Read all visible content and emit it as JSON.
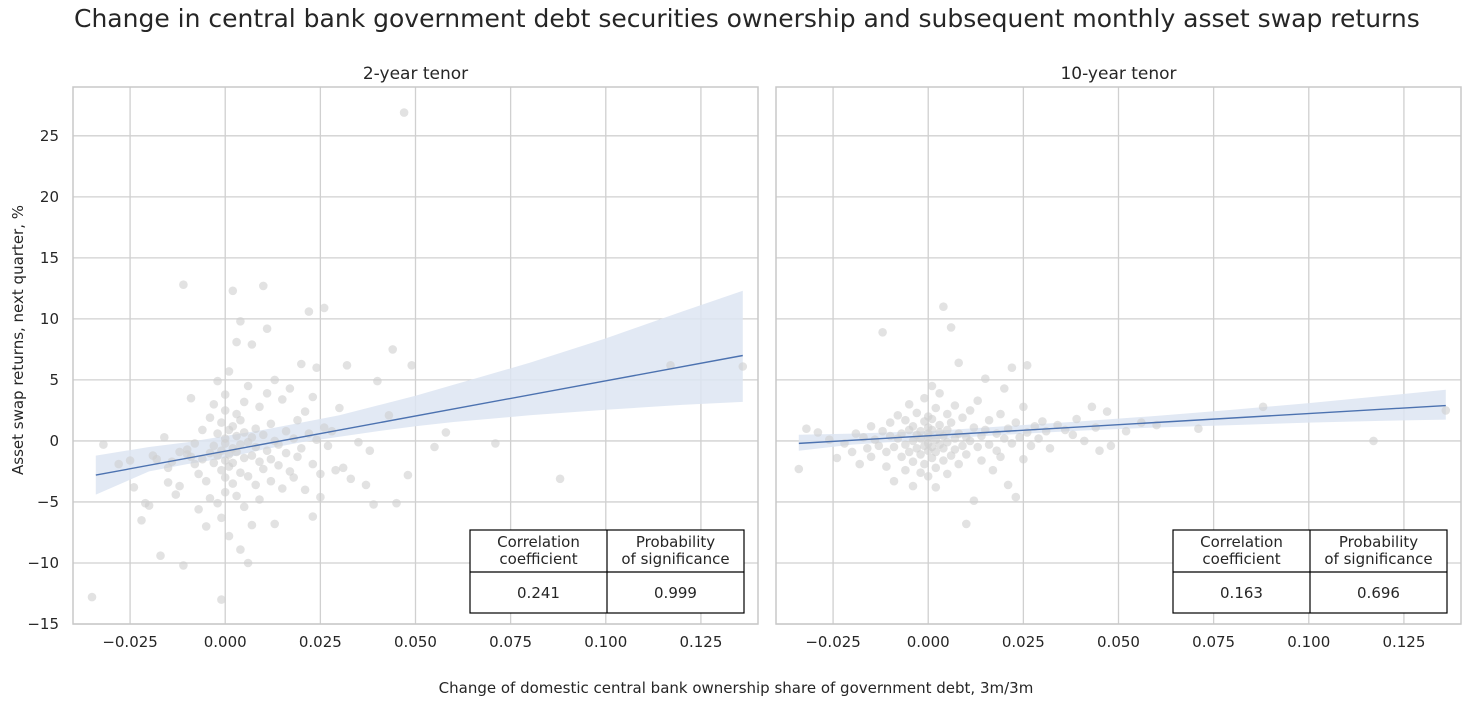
{
  "title": "Change in central bank government debt securities ownership and subsequent monthly asset swap returns",
  "xlabel": "Change of domestic central bank ownership share of government debt, 3m/3m",
  "ylabel": "Asset swap returns, next quarter, %",
  "colors": {
    "point": "#cfcfcf",
    "line": "#4c72b0",
    "band": "#dde5f2",
    "grid": "#d0d0d0",
    "frame": "#c8c8c8"
  },
  "chart_data": [
    {
      "type": "scatter",
      "title": "2-year tenor",
      "xlim": [
        -0.04,
        0.14
      ],
      "ylim": [
        -15,
        29
      ],
      "xticks": [
        -0.025,
        0.0,
        0.025,
        0.05,
        0.075,
        0.1,
        0.125
      ],
      "xtick_labels": [
        "−0.025",
        "0.000",
        "0.025",
        "0.050",
        "0.075",
        "0.100",
        "0.125"
      ],
      "yticks": [
        -15,
        -10,
        -5,
        0,
        5,
        10,
        15,
        20,
        25
      ],
      "ytick_labels": [
        "−15",
        "−10",
        "−5",
        "0",
        "5",
        "10",
        "15",
        "20",
        "25"
      ],
      "regression": {
        "x": [
          -0.034,
          0.136
        ],
        "y": [
          -2.8,
          7.0
        ]
      },
      "confidence_band": {
        "x": [
          -0.034,
          -0.02,
          -0.01,
          0.0,
          0.01,
          0.02,
          0.03,
          0.04,
          0.05,
          0.06,
          0.08,
          0.1,
          0.12,
          0.136
        ],
        "lower": [
          -4.4,
          -2.5,
          -1.9,
          -1.4,
          -0.7,
          -0.1,
          0.35,
          0.8,
          1.2,
          1.55,
          2.1,
          2.55,
          2.95,
          3.2
        ],
        "upper": [
          -1.2,
          -0.5,
          -0.1,
          0.4,
          0.9,
          1.5,
          2.1,
          2.9,
          3.7,
          4.6,
          6.4,
          8.4,
          10.6,
          12.3
        ]
      },
      "points": [
        [
          -0.035,
          -12.8
        ],
        [
          -0.032,
          -0.3
        ],
        [
          -0.028,
          -1.9
        ],
        [
          -0.025,
          -1.6
        ],
        [
          -0.024,
          -3.8
        ],
        [
          -0.022,
          -6.5
        ],
        [
          -0.021,
          -5.1
        ],
        [
          -0.02,
          -5.3
        ],
        [
          -0.019,
          -1.2
        ],
        [
          -0.018,
          -1.5
        ],
        [
          -0.017,
          -9.4
        ],
        [
          -0.016,
          0.3
        ],
        [
          -0.015,
          -3.4
        ],
        [
          -0.015,
          -2.2
        ],
        [
          -0.014,
          -1.7
        ],
        [
          -0.013,
          -4.4
        ],
        [
          -0.012,
          -3.7
        ],
        [
          -0.012,
          -0.9
        ],
        [
          -0.011,
          12.8
        ],
        [
          -0.011,
          -10.2
        ],
        [
          -0.01,
          -1.1
        ],
        [
          -0.01,
          -0.7
        ],
        [
          -0.009,
          -1.3
        ],
        [
          -0.009,
          3.5
        ],
        [
          -0.008,
          -0.2
        ],
        [
          -0.008,
          -1.9
        ],
        [
          -0.007,
          -5.6
        ],
        [
          -0.007,
          -2.7
        ],
        [
          -0.006,
          -1.5
        ],
        [
          -0.006,
          0.9
        ],
        [
          -0.005,
          -7.0
        ],
        [
          -0.005,
          -3.3
        ],
        [
          -0.004,
          -1.0
        ],
        [
          -0.004,
          1.9
        ],
        [
          -0.004,
          -4.7
        ],
        [
          -0.003,
          3.0
        ],
        [
          -0.003,
          -1.8
        ],
        [
          -0.003,
          -0.4
        ],
        [
          -0.002,
          -5.1
        ],
        [
          -0.002,
          -1.2
        ],
        [
          -0.002,
          0.6
        ],
        [
          -0.002,
          4.9
        ],
        [
          -0.001,
          -13.0
        ],
        [
          -0.001,
          -2.4
        ],
        [
          -0.001,
          -0.8
        ],
        [
          -0.001,
          1.5
        ],
        [
          -0.001,
          -6.3
        ],
        [
          0.0,
          -3.0
        ],
        [
          0.0,
          0.2
        ],
        [
          0.0,
          2.5
        ],
        [
          0.0,
          -1.6
        ],
        [
          0.0,
          -4.2
        ],
        [
          0.0,
          -0.2
        ],
        [
          0.0,
          3.8
        ],
        [
          0.001,
          -2.1
        ],
        [
          0.001,
          -7.8
        ],
        [
          0.001,
          0.9
        ],
        [
          0.001,
          -1.1
        ],
        [
          0.001,
          5.7
        ],
        [
          0.002,
          -0.6
        ],
        [
          0.002,
          12.3
        ],
        [
          0.002,
          -3.5
        ],
        [
          0.002,
          1.2
        ],
        [
          0.002,
          -1.8
        ],
        [
          0.003,
          -4.5
        ],
        [
          0.003,
          0.4
        ],
        [
          0.003,
          2.2
        ],
        [
          0.003,
          -0.9
        ],
        [
          0.003,
          8.1
        ],
        [
          0.004,
          -2.6
        ],
        [
          0.004,
          -8.9
        ],
        [
          0.004,
          -0.3
        ],
        [
          0.004,
          1.7
        ],
        [
          0.004,
          9.8
        ],
        [
          0.005,
          -5.4
        ],
        [
          0.005,
          -1.4
        ],
        [
          0.005,
          0.7
        ],
        [
          0.005,
          3.2
        ],
        [
          0.006,
          -0.1
        ],
        [
          0.006,
          -2.9
        ],
        [
          0.006,
          -10.0
        ],
        [
          0.006,
          4.5
        ],
        [
          0.007,
          -1.2
        ],
        [
          0.007,
          0.3
        ],
        [
          0.007,
          7.9
        ],
        [
          0.007,
          -6.9
        ],
        [
          0.008,
          -3.6
        ],
        [
          0.008,
          1.0
        ],
        [
          0.008,
          -0.5
        ],
        [
          0.009,
          2.8
        ],
        [
          0.009,
          -4.8
        ],
        [
          0.009,
          -1.7
        ],
        [
          0.01,
          12.7
        ],
        [
          0.01,
          0.5
        ],
        [
          0.01,
          -2.3
        ],
        [
          0.011,
          3.9
        ],
        [
          0.011,
          -0.8
        ],
        [
          0.011,
          9.2
        ],
        [
          0.012,
          -1.5
        ],
        [
          0.012,
          -3.3
        ],
        [
          0.012,
          1.4
        ],
        [
          0.013,
          -6.8
        ],
        [
          0.013,
          0.0
        ],
        [
          0.013,
          5.0
        ],
        [
          0.014,
          -2.0
        ],
        [
          0.014,
          -0.3
        ],
        [
          0.015,
          3.4
        ],
        [
          0.015,
          -3.9
        ],
        [
          0.016,
          0.8
        ],
        [
          0.016,
          -1.0
        ],
        [
          0.017,
          4.3
        ],
        [
          0.017,
          -2.5
        ],
        [
          0.018,
          0.2
        ],
        [
          0.018,
          -3.0
        ],
        [
          0.019,
          1.7
        ],
        [
          0.019,
          -1.3
        ],
        [
          0.02,
          6.3
        ],
        [
          0.02,
          -0.6
        ],
        [
          0.021,
          2.4
        ],
        [
          0.021,
          -4.0
        ],
        [
          0.022,
          10.6
        ],
        [
          0.022,
          0.6
        ],
        [
          0.023,
          -1.9
        ],
        [
          0.023,
          3.6
        ],
        [
          0.023,
          -6.2
        ],
        [
          0.024,
          0.1
        ],
        [
          0.024,
          6.0
        ],
        [
          0.025,
          -2.7
        ],
        [
          0.025,
          -4.6
        ],
        [
          0.026,
          1.1
        ],
        [
          0.026,
          10.9
        ],
        [
          0.027,
          -0.4
        ],
        [
          0.028,
          0.8
        ],
        [
          0.029,
          -2.4
        ],
        [
          0.03,
          2.7
        ],
        [
          0.031,
          -2.2
        ],
        [
          0.032,
          6.2
        ],
        [
          0.033,
          -3.1
        ],
        [
          0.035,
          -0.1
        ],
        [
          0.037,
          -3.6
        ],
        [
          0.038,
          -0.8
        ],
        [
          0.039,
          -5.2
        ],
        [
          0.04,
          4.9
        ],
        [
          0.043,
          2.1
        ],
        [
          0.044,
          7.5
        ],
        [
          0.045,
          -5.1
        ],
        [
          0.047,
          26.9
        ],
        [
          0.048,
          -2.8
        ],
        [
          0.049,
          6.2
        ],
        [
          0.055,
          -0.5
        ],
        [
          0.058,
          0.7
        ],
        [
          0.071,
          -0.2
        ],
        [
          0.088,
          -3.1
        ],
        [
          0.117,
          6.2
        ],
        [
          0.136,
          6.1
        ]
      ],
      "table": {
        "headers": [
          [
            "Correlation",
            "coefficient"
          ],
          [
            "Probability",
            "of significance"
          ]
        ],
        "values": [
          "0.241",
          "0.999"
        ]
      }
    },
    {
      "type": "scatter",
      "title": "10-year tenor",
      "xlim": [
        -0.04,
        0.14
      ],
      "ylim": [
        -15,
        29
      ],
      "xticks": [
        -0.025,
        0.0,
        0.025,
        0.05,
        0.075,
        0.1,
        0.125
      ],
      "xtick_labels": [
        "−0.025",
        "0.000",
        "0.025",
        "0.050",
        "0.075",
        "0.100",
        "0.125"
      ],
      "regression": {
        "x": [
          -0.034,
          0.136
        ],
        "y": [
          -0.2,
          2.9
        ]
      },
      "confidence_band": {
        "x": [
          -0.034,
          -0.02,
          0.0,
          0.02,
          0.04,
          0.06,
          0.08,
          0.1,
          0.12,
          0.136
        ],
        "lower": [
          -0.8,
          -0.3,
          0.1,
          0.5,
          0.85,
          1.1,
          1.3,
          1.5,
          1.65,
          1.75
        ],
        "upper": [
          0.5,
          0.6,
          0.8,
          1.2,
          1.6,
          2.05,
          2.55,
          3.1,
          3.7,
          4.2
        ]
      },
      "points": [
        [
          -0.034,
          -2.3
        ],
        [
          -0.032,
          1.0
        ],
        [
          -0.029,
          0.7
        ],
        [
          -0.026,
          0.1
        ],
        [
          -0.024,
          -1.4
        ],
        [
          -0.022,
          -0.2
        ],
        [
          -0.02,
          -0.9
        ],
        [
          -0.019,
          0.6
        ],
        [
          -0.018,
          -1.9
        ],
        [
          -0.017,
          0.3
        ],
        [
          -0.016,
          -0.6
        ],
        [
          -0.015,
          1.2
        ],
        [
          -0.015,
          -1.3
        ],
        [
          -0.014,
          0.1
        ],
        [
          -0.013,
          -0.4
        ],
        [
          -0.012,
          8.9
        ],
        [
          -0.012,
          0.8
        ],
        [
          -0.011,
          -2.1
        ],
        [
          -0.011,
          -0.9
        ],
        [
          -0.01,
          0.4
        ],
        [
          -0.01,
          1.5
        ],
        [
          -0.009,
          -0.5
        ],
        [
          -0.009,
          -3.3
        ],
        [
          -0.008,
          0.2
        ],
        [
          -0.008,
          2.1
        ],
        [
          -0.007,
          -1.3
        ],
        [
          -0.007,
          0.6
        ],
        [
          -0.006,
          -0.3
        ],
        [
          -0.006,
          1.7
        ],
        [
          -0.006,
          -2.4
        ],
        [
          -0.005,
          0.9
        ],
        [
          -0.005,
          -0.9
        ],
        [
          -0.005,
          3.0
        ],
        [
          -0.004,
          0.0
        ],
        [
          -0.004,
          -1.7
        ],
        [
          -0.004,
          1.2
        ],
        [
          -0.004,
          -3.7
        ],
        [
          -0.003,
          0.5
        ],
        [
          -0.003,
          -0.6
        ],
        [
          -0.003,
          2.3
        ],
        [
          -0.002,
          -1.1
        ],
        [
          -0.002,
          0.8
        ],
        [
          -0.002,
          -2.6
        ],
        [
          -0.002,
          0.2
        ],
        [
          -0.001,
          1.6
        ],
        [
          -0.001,
          -0.4
        ],
        [
          -0.001,
          -1.9
        ],
        [
          -0.001,
          3.5
        ],
        [
          0.0,
          0.3
        ],
        [
          0.0,
          -0.8
        ],
        [
          0.0,
          1.1
        ],
        [
          0.0,
          -2.9
        ],
        [
          0.0,
          0.6
        ],
        [
          0.0,
          2.0
        ],
        [
          0.0,
          -0.2
        ],
        [
          0.001,
          -1.4
        ],
        [
          0.001,
          0.9
        ],
        [
          0.001,
          4.5
        ],
        [
          0.001,
          -0.5
        ],
        [
          0.001,
          1.8
        ],
        [
          0.002,
          -2.2
        ],
        [
          0.002,
          0.1
        ],
        [
          0.002,
          2.7
        ],
        [
          0.002,
          -0.9
        ],
        [
          0.002,
          -3.8
        ],
        [
          0.003,
          1.3
        ],
        [
          0.003,
          -0.3
        ],
        [
          0.003,
          0.7
        ],
        [
          0.003,
          3.9
        ],
        [
          0.004,
          -1.6
        ],
        [
          0.004,
          0.4
        ],
        [
          0.004,
          -0.6
        ],
        [
          0.004,
          11.0
        ],
        [
          0.005,
          2.2
        ],
        [
          0.005,
          -2.7
        ],
        [
          0.005,
          0.9
        ],
        [
          0.005,
          -0.1
        ],
        [
          0.006,
          1.5
        ],
        [
          0.006,
          -1.2
        ],
        [
          0.006,
          9.3
        ],
        [
          0.007,
          0.2
        ],
        [
          0.007,
          -0.7
        ],
        [
          0.007,
          2.9
        ],
        [
          0.008,
          -1.9
        ],
        [
          0.008,
          0.6
        ],
        [
          0.008,
          6.4
        ],
        [
          0.009,
          -0.4
        ],
        [
          0.009,
          1.9
        ],
        [
          0.01,
          -6.8
        ],
        [
          0.01,
          0.3
        ],
        [
          0.01,
          -1.1
        ],
        [
          0.011,
          2.5
        ],
        [
          0.011,
          0.0
        ],
        [
          0.012,
          -4.9
        ],
        [
          0.012,
          1.1
        ],
        [
          0.013,
          -0.5
        ],
        [
          0.013,
          3.3
        ],
        [
          0.014,
          0.4
        ],
        [
          0.014,
          -1.6
        ],
        [
          0.015,
          5.1
        ],
        [
          0.015,
          0.9
        ],
        [
          0.016,
          -0.3
        ],
        [
          0.016,
          1.7
        ],
        [
          0.017,
          -2.4
        ],
        [
          0.018,
          0.6
        ],
        [
          0.018,
          -0.8
        ],
        [
          0.019,
          2.2
        ],
        [
          0.019,
          -1.3
        ],
        [
          0.02,
          0.2
        ],
        [
          0.02,
          4.3
        ],
        [
          0.021,
          -3.6
        ],
        [
          0.021,
          1.0
        ],
        [
          0.022,
          6.0
        ],
        [
          0.022,
          -0.2
        ],
        [
          0.023,
          -4.6
        ],
        [
          0.023,
          1.5
        ],
        [
          0.024,
          0.3
        ],
        [
          0.025,
          2.8
        ],
        [
          0.025,
          -1.5
        ],
        [
          0.026,
          0.7
        ],
        [
          0.026,
          6.2
        ],
        [
          0.027,
          -0.4
        ],
        [
          0.028,
          1.2
        ],
        [
          0.029,
          0.2
        ],
        [
          0.03,
          1.6
        ],
        [
          0.031,
          0.8
        ],
        [
          0.032,
          -0.6
        ],
        [
          0.034,
          1.3
        ],
        [
          0.036,
          0.9
        ],
        [
          0.038,
          0.5
        ],
        [
          0.039,
          1.8
        ],
        [
          0.041,
          0.0
        ],
        [
          0.043,
          2.8
        ],
        [
          0.044,
          1.1
        ],
        [
          0.045,
          -0.8
        ],
        [
          0.047,
          2.4
        ],
        [
          0.048,
          -0.4
        ],
        [
          0.052,
          0.8
        ],
        [
          0.056,
          1.5
        ],
        [
          0.06,
          1.3
        ],
        [
          0.071,
          1.0
        ],
        [
          0.088,
          2.8
        ],
        [
          0.117,
          0.0
        ],
        [
          0.136,
          2.5
        ]
      ],
      "table": {
        "headers": [
          [
            "Correlation",
            "coefficient"
          ],
          [
            "Probability",
            "of significance"
          ]
        ],
        "values": [
          "0.163",
          "0.696"
        ]
      }
    }
  ]
}
